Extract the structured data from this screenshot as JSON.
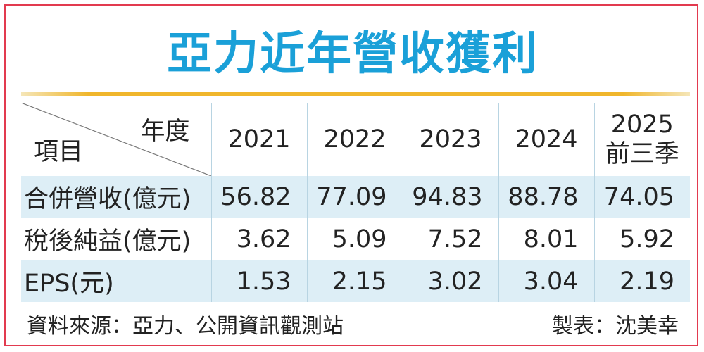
{
  "title": "亞力近年營收獲利",
  "header": {
    "corner_year": "年度",
    "corner_item": "項目",
    "years": [
      "2021",
      "2022",
      "2023",
      "2024",
      "2025"
    ],
    "last_year_suffix": "前三季"
  },
  "rows": [
    {
      "label": "合併營收(億元)",
      "values": [
        "56.82",
        "77.09",
        "94.83",
        "88.78",
        "74.05"
      ]
    },
    {
      "label": "稅後純益(億元)",
      "values": [
        "3.62",
        "5.09",
        "7.52",
        "8.01",
        "5.92"
      ]
    },
    {
      "label": "EPS(元)",
      "values": [
        "1.53",
        "2.15",
        "3.02",
        "3.04",
        "2.19"
      ]
    }
  ],
  "footer": {
    "source": "資料來源：亞力、公開資訊觀測站",
    "credit": "製表：沈美幸"
  },
  "colors": {
    "title": "#1aa0d8",
    "border": "#e23a4f",
    "rule": "#f0b62c",
    "band": "#ddeef6"
  }
}
